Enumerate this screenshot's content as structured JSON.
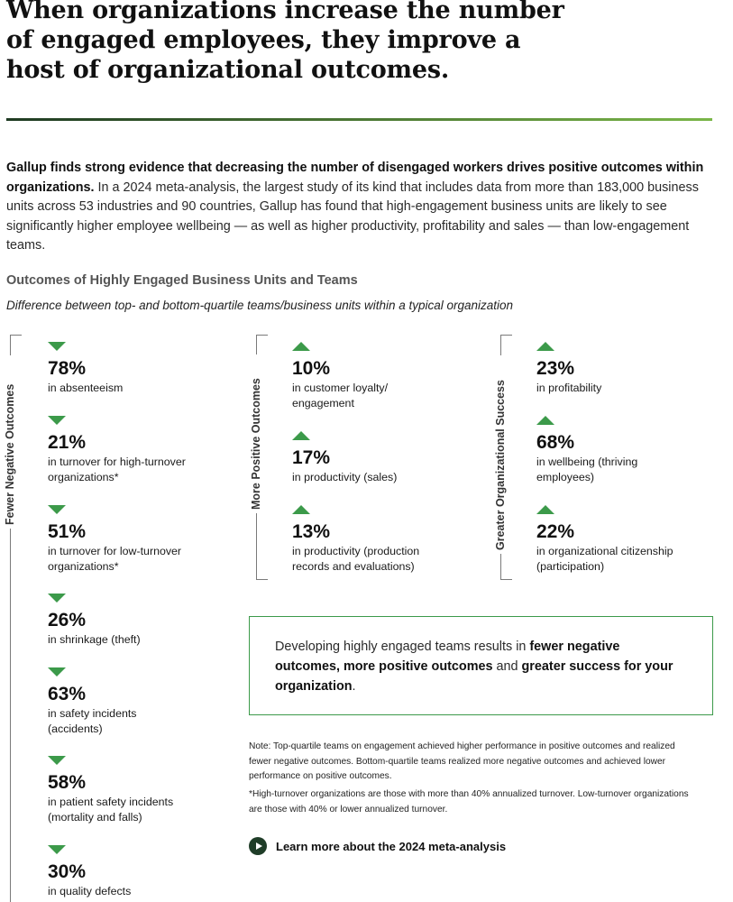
{
  "headline": [
    "When organizations increase the number",
    "of engaged employees, they improve a",
    "host of organizational outcomes."
  ],
  "colors": {
    "accent_green": "#3c9a4a",
    "rule_dark": "#1e3a22",
    "rule_light": "#7ab648"
  },
  "intro": {
    "lead": "Gallup finds strong evidence that decreasing the number of disengaged workers drives positive outcomes within organizations.",
    "body": " In a 2024 meta-analysis, the largest study of its kind that includes data from more than 183,000 business units across 53 industries and 90 countries, Gallup has found that high-engagement business units are likely to see significantly higher employee wellbeing — as well as higher productivity, profitability and sales — than low-engagement teams."
  },
  "section": {
    "title": "Outcomes of Highly Engaged Business Units and Teams",
    "subtitle": "Difference between top- and bottom-quartile teams/business units within a typical organization"
  },
  "columns": [
    {
      "label": "Fewer Negative Outcomes",
      "direction": "down",
      "items": [
        {
          "value": "78%",
          "desc": "in absenteeism"
        },
        {
          "value": "21%",
          "desc": "in turnover for high-turnover organizations*"
        },
        {
          "value": "51%",
          "desc": "in turnover for low-turnover organizations*"
        },
        {
          "value": "26%",
          "desc": "in shrinkage (theft)"
        },
        {
          "value": "63%",
          "desc": "in safety incidents (accidents)"
        },
        {
          "value": "58%",
          "desc": "in patient safety incidents (mortality and falls)"
        },
        {
          "value": "30%",
          "desc": "in quality defects"
        }
      ]
    },
    {
      "label": "More Positive Outcomes",
      "direction": "up",
      "items": [
        {
          "value": "10%",
          "desc": "in customer loyalty/ engagement"
        },
        {
          "value": "17%",
          "desc": "in productivity (sales)"
        },
        {
          "value": "13%",
          "desc": "in productivity (production records and evaluations)"
        }
      ]
    },
    {
      "label": "Greater Organizational Success",
      "direction": "up",
      "items": [
        {
          "value": "23%",
          "desc": "in profitability"
        },
        {
          "value": "68%",
          "desc": "in wellbeing (thriving employees)"
        },
        {
          "value": "22%",
          "desc": "in organizational citizenship (participation)"
        }
      ]
    }
  ],
  "callout": {
    "part1": "Developing highly engaged teams results in ",
    "bold1": "fewer negative outcomes, more positive outcomes",
    "part2": " and ",
    "bold2": "greater success for your organization",
    "part3": "."
  },
  "notes": {
    "note1": "Note: Top-quartile teams on engagement achieved higher performance in positive outcomes and realized fewer negative outcomes. Bottom-quartile teams realized more negative outcomes and achieved lower performance on positive outcomes.",
    "note2": "*High-turnover organizations are those with more than 40% annualized turnover. Low-turnover organizations are those with 40% or lower annualized turnover."
  },
  "learn_more": {
    "label": "Learn more about the 2024 meta-analysis",
    "icon": "play-circle-icon"
  }
}
